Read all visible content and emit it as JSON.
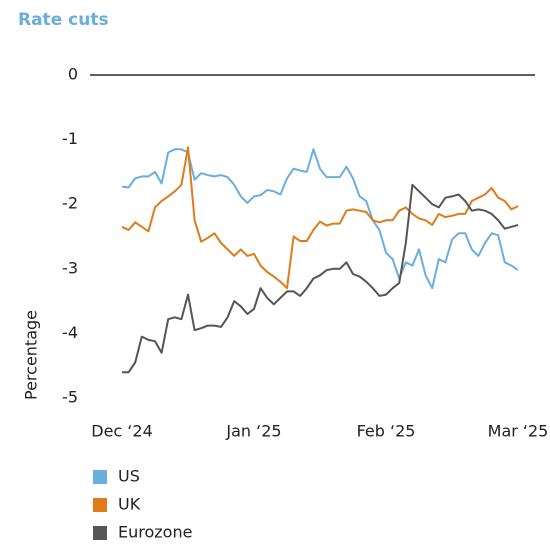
{
  "chart_data": {
    "type": "line",
    "title": "Rate cuts",
    "y_label": "Percentage",
    "categories": [
      "Dec ‘24",
      null,
      null,
      null,
      null,
      null,
      null,
      null,
      null,
      null,
      null,
      null,
      null,
      null,
      null,
      null,
      null,
      null,
      null,
      null,
      "Jan ‘25",
      null,
      null,
      null,
      null,
      null,
      null,
      null,
      null,
      null,
      null,
      null,
      null,
      null,
      null,
      null,
      null,
      null,
      null,
      null,
      "Feb ‘25",
      null,
      null,
      null,
      null,
      null,
      null,
      null,
      null,
      null,
      null,
      null,
      null,
      null,
      null,
      null,
      null,
      null,
      null,
      null,
      "Mar ‘25"
    ],
    "ylim": [
      -5,
      0
    ],
    "yticks": [
      0,
      -1,
      -2,
      -3,
      -4,
      -5
    ],
    "grid": false,
    "legend": "bottom",
    "series": [
      {
        "name": "US",
        "color": "#6aaee0",
        "values": [
          -1.73,
          -1.74,
          -1.6,
          -1.57,
          -1.57,
          -1.5,
          -1.68,
          -1.2,
          -1.15,
          -1.15,
          -1.2,
          -1.62,
          -1.52,
          -1.55,
          -1.57,
          -1.55,
          -1.58,
          -1.7,
          -1.88,
          -1.98,
          -1.88,
          -1.86,
          -1.78,
          -1.8,
          -1.85,
          -1.6,
          -1.45,
          -1.48,
          -1.5,
          -1.15,
          -1.45,
          -1.58,
          -1.58,
          -1.58,
          -1.42,
          -1.6,
          -1.88,
          -1.95,
          -2.25,
          -2.4,
          -2.75,
          -2.85,
          -3.15,
          -2.9,
          -2.95,
          -2.7,
          -3.1,
          -3.3,
          -2.85,
          -2.9,
          -2.55,
          -2.45,
          -2.45,
          -2.7,
          -2.8,
          -2.6,
          -2.45,
          -2.48,
          -2.9,
          -2.95,
          -3.02
        ]
      },
      {
        "name": "UK",
        "color": "#e07b1a",
        "values": [
          -2.35,
          -2.4,
          -2.28,
          -2.35,
          -2.42,
          -2.05,
          -1.95,
          -1.88,
          -1.8,
          -1.7,
          -1.12,
          -2.25,
          -2.58,
          -2.52,
          -2.45,
          -2.6,
          -2.7,
          -2.8,
          -2.7,
          -2.8,
          -2.77,
          -2.95,
          -3.05,
          -3.12,
          -3.2,
          -3.3,
          -2.5,
          -2.57,
          -2.57,
          -2.4,
          -2.27,
          -2.33,
          -2.3,
          -2.3,
          -2.1,
          -2.08,
          -2.1,
          -2.12,
          -2.25,
          -2.28,
          -2.25,
          -2.25,
          -2.1,
          -2.05,
          -2.15,
          -2.22,
          -2.25,
          -2.32,
          -2.15,
          -2.2,
          -2.18,
          -2.15,
          -2.15,
          -1.95,
          -1.9,
          -1.85,
          -1.75,
          -1.9,
          -1.95,
          -2.08,
          -2.03
        ]
      },
      {
        "name": "Eurozone",
        "color": "#555555",
        "values": [
          -4.6,
          -4.6,
          -4.45,
          -4.05,
          -4.1,
          -4.12,
          -4.3,
          -3.78,
          -3.75,
          -3.78,
          -3.4,
          -3.95,
          -3.92,
          -3.88,
          -3.88,
          -3.9,
          -3.75,
          -3.5,
          -3.58,
          -3.7,
          -3.62,
          -3.3,
          -3.45,
          -3.55,
          -3.45,
          -3.35,
          -3.35,
          -3.42,
          -3.3,
          -3.15,
          -3.1,
          -3.02,
          -3.0,
          -3.0,
          -2.9,
          -3.08,
          -3.12,
          -3.2,
          -3.3,
          -3.42,
          -3.4,
          -3.3,
          -3.22,
          -2.6,
          -1.7,
          -1.8,
          -1.9,
          -2.0,
          -2.05,
          -1.9,
          -1.88,
          -1.85,
          -1.95,
          -2.1,
          -2.08,
          -2.1,
          -2.15,
          -2.25,
          -2.38,
          -2.35,
          -2.32
        ]
      }
    ]
  }
}
